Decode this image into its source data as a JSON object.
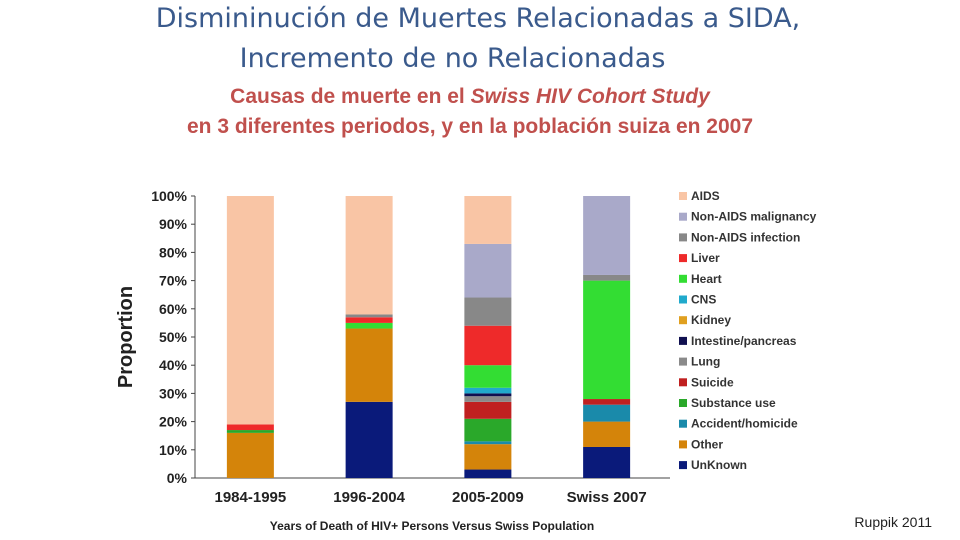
{
  "title_line1": "Dismininución de Muertes Relacionadas a SIDA,",
  "title_line2": "Incremento de no Relacionadas",
  "subtitle_line1_a": "Causas de muerte en el ",
  "subtitle_line1_b": "Swiss HIV Cohort Study",
  "subtitle_line2": "en 3 diferentes periodos, y en la población suiza en 2007",
  "credit": "Ruppik 2011",
  "chart_data": {
    "type": "bar",
    "stacked": true,
    "ylabel": "Proportion",
    "xlabel": "Years of Death of HIV+ Persons Versus Swiss Population",
    "ylim": [
      0,
      100
    ],
    "yticks": [
      "0%",
      "10%",
      "20%",
      "30%",
      "40%",
      "50%",
      "60%",
      "70%",
      "80%",
      "90%",
      "100%"
    ],
    "categories": [
      "1984-1995",
      "1996-2004",
      "2005-2009",
      "Swiss 2007"
    ],
    "legend_position": "right",
    "series": [
      {
        "name": "UnKnown",
        "color": "#0a1a7a",
        "values": [
          0,
          27,
          3,
          11
        ]
      },
      {
        "name": "Other",
        "color": "#d4840a",
        "values": [
          16,
          26,
          9,
          9
        ]
      },
      {
        "name": "Accident/homicide",
        "color": "#1a8aaa",
        "values": [
          0,
          0,
          1,
          6
        ]
      },
      {
        "name": "Substance use",
        "color": "#2aa82a",
        "values": [
          1,
          0,
          8,
          0
        ]
      },
      {
        "name": "Suicide",
        "color": "#c02020",
        "values": [
          0,
          0,
          6,
          2
        ]
      },
      {
        "name": "Lung",
        "color": "#8a8a8a",
        "values": [
          0,
          0,
          2,
          0
        ]
      },
      {
        "name": "Intestine/pancreas",
        "color": "#101050",
        "values": [
          0,
          0,
          1,
          0
        ]
      },
      {
        "name": "Kidney",
        "color": "#e0a020",
        "values": [
          0,
          0,
          0,
          0
        ]
      },
      {
        "name": "CNS",
        "color": "#20aacc",
        "values": [
          0,
          0,
          2,
          0
        ]
      },
      {
        "name": "Heart",
        "color": "#33dd33",
        "values": [
          0,
          2,
          8,
          42
        ]
      },
      {
        "name": "Liver",
        "color": "#ee2a2a",
        "values": [
          2,
          2,
          14,
          0
        ]
      },
      {
        "name": "Non-AIDS infection",
        "color": "#888888",
        "values": [
          0,
          1,
          10,
          2
        ]
      },
      {
        "name": "Non-AIDS malignancy",
        "color": "#a9a9c9",
        "values": [
          0,
          0,
          19,
          28
        ]
      },
      {
        "name": "AIDS",
        "color": "#f9c5a5",
        "values": [
          81,
          42,
          17,
          0
        ]
      }
    ],
    "legend_order": [
      "AIDS",
      "Non-AIDS malignancy",
      "Non-AIDS infection",
      "Liver",
      "Heart",
      "CNS",
      "Kidney",
      "Intestine/pancreas",
      "Lung",
      "Suicide",
      "Substance use",
      "Accident/homicide",
      "Other",
      "UnKnown"
    ]
  }
}
